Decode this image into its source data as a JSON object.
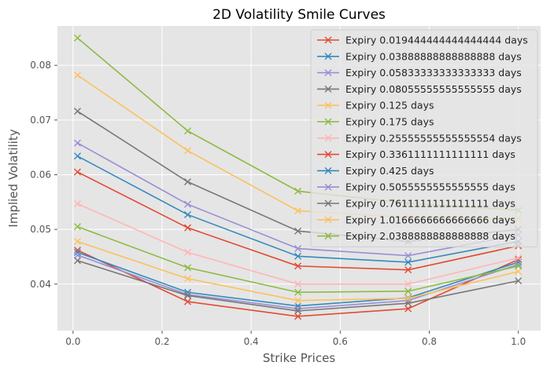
{
  "chart_data": {
    "type": "line",
    "title": "2D Volatility Smile Curves",
    "xlabel": "Strike Prices",
    "ylabel": "Implied Volatility",
    "xlim": [
      -0.035,
      1.05
    ],
    "ylim": [
      0.0315,
      0.0872
    ],
    "xticks": [
      0.0,
      0.2,
      0.4,
      0.6,
      0.8,
      1.0
    ],
    "xtick_labels": [
      "0.0",
      "0.2",
      "0.4",
      "0.6",
      "0.8",
      "1.0"
    ],
    "yticks": [
      0.04,
      0.05,
      0.06,
      0.07,
      0.08
    ],
    "ytick_labels": [
      "0.04",
      "0.05",
      "0.06",
      "0.07",
      "0.08"
    ],
    "grid": true,
    "legend_position": "top-right",
    "marker": "x",
    "x": [
      0.01,
      0.2575,
      0.505,
      0.7525,
      1.0
    ],
    "series": [
      {
        "name": "Expiry 0.019444444444444444 days",
        "color": "#E24A33",
        "values": [
          0.0462,
          0.0368,
          0.0341,
          0.0355,
          0.0445
        ]
      },
      {
        "name": "Expiry 0.03888888888888888 days",
        "color": "#348ABD",
        "values": [
          0.0458,
          0.0385,
          0.036,
          0.0375,
          0.044
        ]
      },
      {
        "name": "Expiry 0.05833333333333333 days",
        "color": "#988ED5",
        "values": [
          0.0453,
          0.0381,
          0.0355,
          0.037,
          0.0436
        ]
      },
      {
        "name": "Expiry 0.08055555555555555 days",
        "color": "#777777",
        "values": [
          0.0443,
          0.0379,
          0.0351,
          0.0365,
          0.0406
        ]
      },
      {
        "name": "Expiry 0.125 days",
        "color": "#FBC15E",
        "values": [
          0.0478,
          0.041,
          0.037,
          0.0374,
          0.0423
        ]
      },
      {
        "name": "Expiry 0.175 days",
        "color": "#8EBA42",
        "values": [
          0.0505,
          0.043,
          0.0385,
          0.0387,
          0.0433
        ]
      },
      {
        "name": "Expiry 0.25555555555555554 days",
        "color": "#FFB5B8",
        "values": [
          0.0547,
          0.0458,
          0.04,
          0.04,
          0.0448
        ]
      },
      {
        "name": "Expiry 0.3361111111111111 days",
        "color": "#E24A33",
        "values": [
          0.0605,
          0.0503,
          0.0433,
          0.0426,
          0.047
        ]
      },
      {
        "name": "Expiry 0.425 days",
        "color": "#348ABD",
        "values": [
          0.0634,
          0.0527,
          0.0451,
          0.044,
          0.0478
        ]
      },
      {
        "name": "Expiry 0.5055555555555555 days",
        "color": "#988ED5",
        "values": [
          0.0658,
          0.0546,
          0.0465,
          0.0452,
          0.049
        ]
      },
      {
        "name": "Expiry 0.7611111111111111 days",
        "color": "#777777",
        "values": [
          0.0716,
          0.0587,
          0.0497,
          0.0478,
          0.05
        ]
      },
      {
        "name": "Expiry 1.0166666666666666 days",
        "color": "#FBC15E",
        "values": [
          0.0782,
          0.0644,
          0.0534,
          0.0522,
          0.052
        ]
      },
      {
        "name": "Expiry 2.0388888888888888 days",
        "color": "#8EBA42",
        "values": [
          0.085,
          0.068,
          0.057,
          0.0548,
          0.0535
        ]
      }
    ]
  }
}
